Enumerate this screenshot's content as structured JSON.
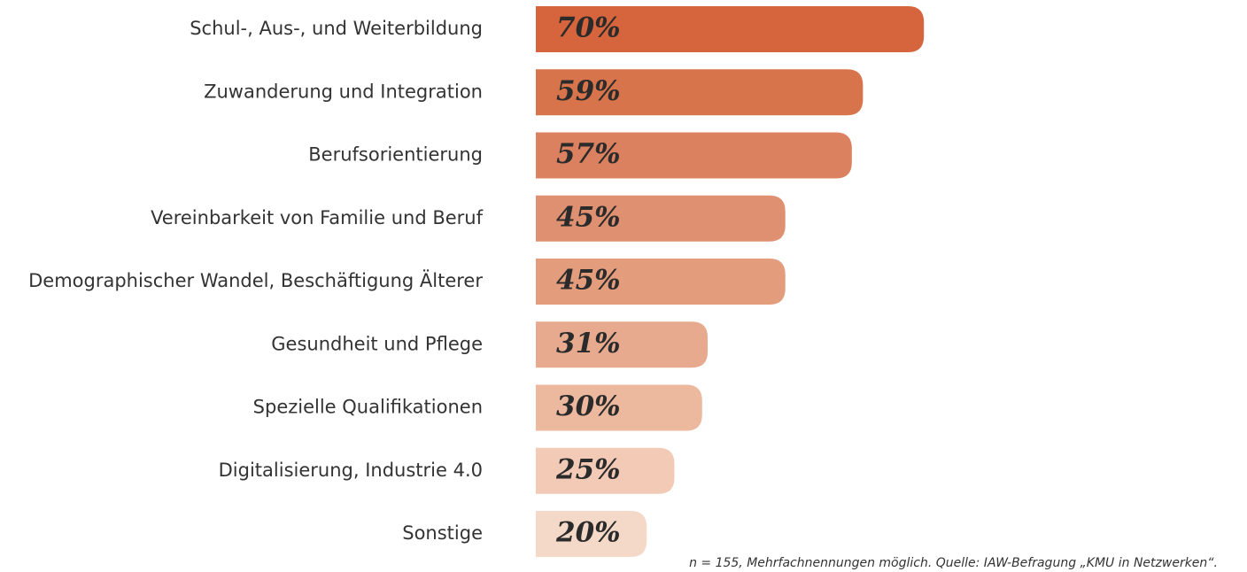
{
  "chart_data": {
    "type": "bar",
    "orientation": "horizontal",
    "categories": [
      "Schul-, Aus-, und Weiterbildung",
      "Zuwanderung und Integration",
      "Berufsorientierung",
      "Vereinbarkeit von Familie und Beruf",
      "Demographischer Wandel, Beschäftigung Älterer",
      "Gesundheit und Pflege",
      "Spezielle Qualifikationen",
      "Digitalisierung, Industrie 4.0",
      "Sonstige"
    ],
    "values": [
      70,
      59,
      57,
      45,
      45,
      31,
      30,
      25,
      20
    ],
    "value_labels": [
      "70%",
      "59%",
      "57%",
      "45%",
      "45%",
      "31%",
      "30%",
      "25%",
      "20%"
    ],
    "colors": [
      "#d6643c",
      "#d8744b",
      "#db8160",
      "#df9070",
      "#e39c7c",
      "#e8aa8e",
      "#ecb99f",
      "#f2cab5",
      "#f5d9c8"
    ],
    "note": "n = 155, Mehrfachnennungen möglich. Quelle: IAW-Befragung „KMU in Netzwerken“."
  }
}
